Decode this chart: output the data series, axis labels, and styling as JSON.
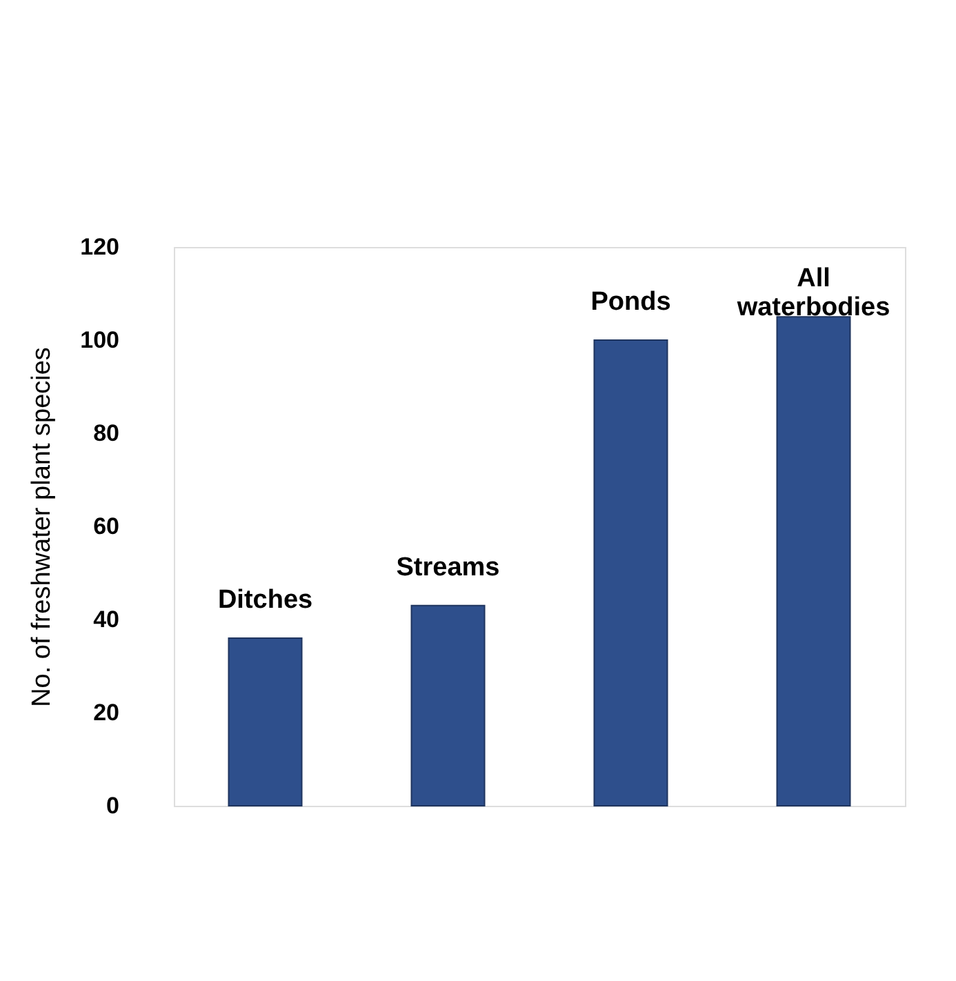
{
  "chart_data": {
    "type": "bar",
    "ylabel": "No. of freshwater plant species",
    "categories": [
      "Ditches",
      "Streams",
      "Ponds",
      "All waterbodies"
    ],
    "values": [
      36,
      43,
      100,
      105
    ],
    "color": "#2e4f8c",
    "ylim": [
      0,
      120
    ],
    "yticks": [
      0,
      20,
      40,
      60,
      80,
      100,
      120
    ],
    "grid": false,
    "tick_labels": "y"
  }
}
